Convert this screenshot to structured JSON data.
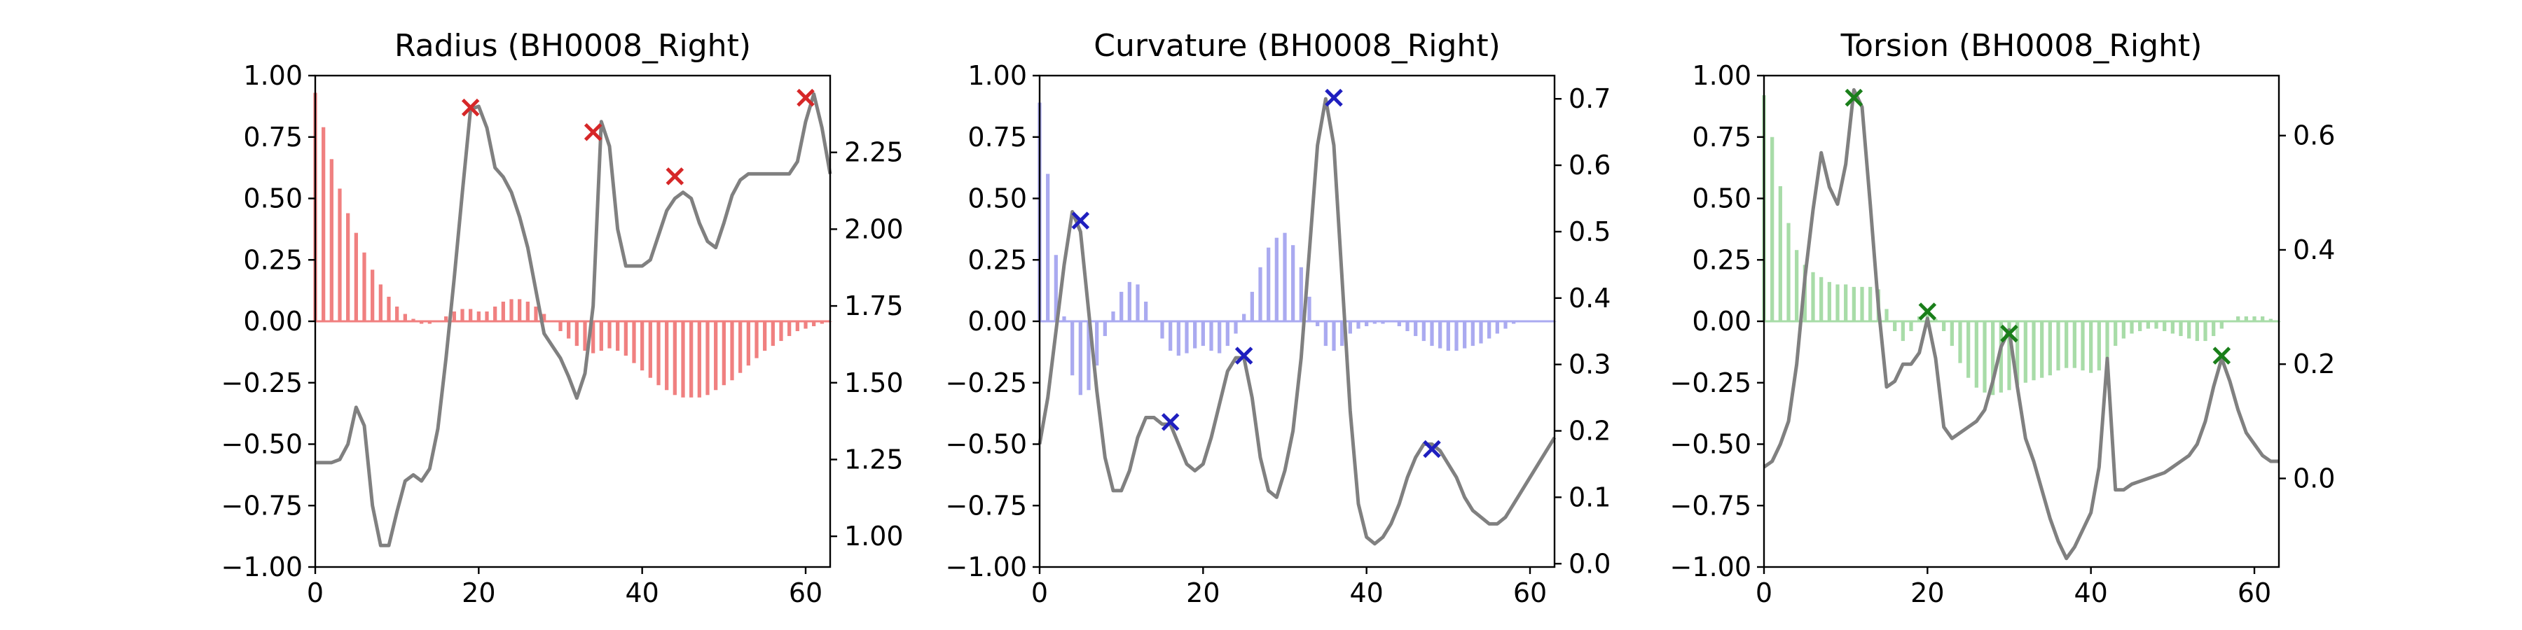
{
  "chart_data": [
    {
      "type": "bar",
      "title": "Radius (BH0008_Right)",
      "bar_color": "#f08080",
      "line_color": "#808080",
      "marker_color": "#d62728",
      "xlim": [
        0,
        63
      ],
      "ylim_left": [
        -1.0,
        1.0
      ],
      "ylim_right": [
        0.9,
        2.5
      ],
      "x_ticks": [
        0,
        20,
        40,
        60
      ],
      "x_tick_labels": [
        "0",
        "20",
        "40",
        "60"
      ],
      "left_ticks": [
        -1.0,
        -0.75,
        -0.5,
        -0.25,
        0.0,
        0.25,
        0.5,
        0.75,
        1.0
      ],
      "left_tick_labels": [
        "−1.00",
        "−0.75",
        "−0.50",
        "−0.25",
        "0.00",
        "0.25",
        "0.50",
        "0.75",
        "1.00"
      ],
      "right_ticks": [
        1.0,
        1.25,
        1.5,
        1.75,
        2.0,
        2.25
      ],
      "right_tick_labels": [
        "1.00",
        "1.25",
        "1.50",
        "1.75",
        "2.00",
        "2.25"
      ],
      "bars": [
        0.93,
        0.79,
        0.66,
        0.54,
        0.44,
        0.36,
        0.28,
        0.21,
        0.15,
        0.1,
        0.06,
        0.03,
        0.01,
        -0.01,
        -0.01,
        0.0,
        0.02,
        0.04,
        0.05,
        0.05,
        0.04,
        0.04,
        0.06,
        0.08,
        0.09,
        0.09,
        0.08,
        0.06,
        0.03,
        0.0,
        -0.04,
        -0.07,
        -0.1,
        -0.12,
        -0.13,
        -0.12,
        -0.11,
        -0.12,
        -0.14,
        -0.17,
        -0.2,
        -0.23,
        -0.26,
        -0.28,
        -0.3,
        -0.31,
        -0.31,
        -0.31,
        -0.3,
        -0.28,
        -0.26,
        -0.24,
        -0.21,
        -0.18,
        -0.15,
        -0.12,
        -0.1,
        -0.08,
        -0.06,
        -0.04,
        -0.03,
        -0.02,
        -0.01,
        0.0
      ],
      "line": [
        1.24,
        1.24,
        1.24,
        1.25,
        1.3,
        1.42,
        1.36,
        1.1,
        0.97,
        0.97,
        1.08,
        1.18,
        1.2,
        1.18,
        1.22,
        1.35,
        1.58,
        1.84,
        2.12,
        2.39,
        2.4,
        2.33,
        2.2,
        2.17,
        2.12,
        2.04,
        1.94,
        1.8,
        1.66,
        1.62,
        1.58,
        1.52,
        1.45,
        1.53,
        1.75,
        2.35,
        2.27,
        2.0,
        1.88,
        1.88,
        1.88,
        1.9,
        1.98,
        2.06,
        2.1,
        2.12,
        2.1,
        2.02,
        1.96,
        1.94,
        2.02,
        2.11,
        2.16,
        2.18,
        2.18,
        2.18,
        2.18,
        2.18,
        2.18,
        2.22,
        2.35,
        2.44,
        2.33,
        2.18
      ],
      "markers": [
        {
          "x": 19,
          "y": 0.87
        },
        {
          "x": 34,
          "y": 0.77
        },
        {
          "x": 44,
          "y": 0.59
        },
        {
          "x": 60,
          "y": 0.91
        }
      ]
    },
    {
      "type": "bar",
      "title": "Curvature (BH0008_Right)",
      "bar_color": "#aaaaf0",
      "line_color": "#808080",
      "marker_color": "#1f1fbf",
      "xlim": [
        0,
        63
      ],
      "ylim_left": [
        -1.0,
        1.0
      ],
      "ylim_right": [
        -0.005,
        0.735
      ],
      "x_ticks": [
        0,
        20,
        40,
        60
      ],
      "x_tick_labels": [
        "0",
        "20",
        "40",
        "60"
      ],
      "left_ticks": [
        -1.0,
        -0.75,
        -0.5,
        -0.25,
        0.0,
        0.25,
        0.5,
        0.75,
        1.0
      ],
      "left_tick_labels": [
        "−1.00",
        "−0.75",
        "−0.50",
        "−0.25",
        "0.00",
        "0.25",
        "0.50",
        "0.75",
        "1.00"
      ],
      "right_ticks": [
        0.0,
        0.1,
        0.2,
        0.3,
        0.4,
        0.5,
        0.6,
        0.7
      ],
      "right_tick_labels": [
        "0.0",
        "0.1",
        "0.2",
        "0.3",
        "0.4",
        "0.5",
        "0.6",
        "0.7"
      ],
      "bars": [
        0.89,
        0.6,
        0.27,
        0.02,
        -0.22,
        -0.3,
        -0.28,
        -0.18,
        -0.06,
        0.04,
        0.12,
        0.16,
        0.15,
        0.08,
        0.0,
        -0.07,
        -0.12,
        -0.14,
        -0.13,
        -0.11,
        -0.1,
        -0.12,
        -0.13,
        -0.1,
        -0.05,
        0.03,
        0.12,
        0.22,
        0.3,
        0.34,
        0.36,
        0.31,
        0.22,
        0.1,
        -0.02,
        -0.1,
        -0.12,
        -0.1,
        -0.05,
        -0.03,
        -0.02,
        -0.01,
        -0.01,
        0.0,
        -0.02,
        -0.04,
        -0.06,
        -0.08,
        -0.1,
        -0.11,
        -0.12,
        -0.12,
        -0.11,
        -0.1,
        -0.09,
        -0.07,
        -0.05,
        -0.03,
        -0.01,
        0.0,
        0.0,
        0.0,
        0.0,
        0.0
      ],
      "line": [
        0.18,
        0.25,
        0.35,
        0.45,
        0.53,
        0.5,
        0.38,
        0.26,
        0.16,
        0.11,
        0.11,
        0.14,
        0.19,
        0.22,
        0.22,
        0.21,
        0.21,
        0.18,
        0.15,
        0.14,
        0.15,
        0.19,
        0.24,
        0.29,
        0.31,
        0.31,
        0.25,
        0.16,
        0.11,
        0.1,
        0.14,
        0.2,
        0.31,
        0.47,
        0.63,
        0.7,
        0.63,
        0.43,
        0.23,
        0.09,
        0.04,
        0.03,
        0.04,
        0.06,
        0.09,
        0.13,
        0.16,
        0.18,
        0.18,
        0.17,
        0.15,
        0.13,
        0.1,
        0.08,
        0.07,
        0.06,
        0.06,
        0.07,
        0.09,
        0.11,
        0.13,
        0.15,
        0.17,
        0.19
      ],
      "markers": [
        {
          "x": 5,
          "y": 0.41
        },
        {
          "x": 16,
          "y": -0.41
        },
        {
          "x": 25,
          "y": -0.14
        },
        {
          "x": 36,
          "y": 0.91
        },
        {
          "x": 48,
          "y": -0.52
        }
      ]
    },
    {
      "type": "bar",
      "title": "Torsion (BH0008_Right)",
      "bar_color": "#a8dca8",
      "line_color": "#808080",
      "marker_color": "#1a7f1a",
      "xlim": [
        0,
        63
      ],
      "ylim_left": [
        -1.0,
        1.0
      ],
      "ylim_right": [
        -0.155,
        0.705
      ],
      "x_ticks": [
        0,
        20,
        40,
        60
      ],
      "x_tick_labels": [
        "0",
        "20",
        "40",
        "60"
      ],
      "left_ticks": [
        -1.0,
        -0.75,
        -0.5,
        -0.25,
        0.0,
        0.25,
        0.5,
        0.75,
        1.0
      ],
      "left_tick_labels": [
        "−1.00",
        "−0.75",
        "−0.50",
        "−0.25",
        "0.00",
        "0.25",
        "0.50",
        "0.75",
        "1.00"
      ],
      "right_ticks": [
        0.0,
        0.2,
        0.4,
        0.6
      ],
      "right_tick_labels": [
        "0.0",
        "0.2",
        "0.4",
        "0.6"
      ],
      "bars": [
        0.92,
        0.75,
        0.55,
        0.4,
        0.29,
        0.23,
        0.2,
        0.18,
        0.16,
        0.15,
        0.15,
        0.14,
        0.14,
        0.14,
        0.13,
        0.05,
        -0.04,
        -0.08,
        -0.04,
        0.02,
        0.04,
        0.01,
        -0.04,
        -0.1,
        -0.17,
        -0.23,
        -0.27,
        -0.29,
        -0.3,
        -0.29,
        -0.28,
        -0.26,
        -0.25,
        -0.24,
        -0.23,
        -0.22,
        -0.2,
        -0.19,
        -0.19,
        -0.2,
        -0.21,
        -0.2,
        -0.15,
        -0.1,
        -0.07,
        -0.05,
        -0.04,
        -0.03,
        -0.03,
        -0.04,
        -0.05,
        -0.06,
        -0.07,
        -0.08,
        -0.08,
        -0.06,
        -0.03,
        0.0,
        0.02,
        0.02,
        0.02,
        0.02,
        0.01,
        0.0
      ],
      "line": [
        0.02,
        0.03,
        0.06,
        0.1,
        0.2,
        0.35,
        0.47,
        0.57,
        0.51,
        0.48,
        0.55,
        0.68,
        0.65,
        0.48,
        0.3,
        0.16,
        0.17,
        0.2,
        0.2,
        0.22,
        0.28,
        0.21,
        0.09,
        0.07,
        0.08,
        0.09,
        0.1,
        0.12,
        0.17,
        0.23,
        0.26,
        0.16,
        0.07,
        0.03,
        -0.02,
        -0.07,
        -0.11,
        -0.14,
        -0.12,
        -0.09,
        -0.06,
        0.02,
        0.21,
        -0.02,
        -0.02,
        -0.01,
        -0.005,
        0.0,
        0.005,
        0.01,
        0.02,
        0.03,
        0.04,
        0.06,
        0.1,
        0.16,
        0.21,
        0.17,
        0.12,
        0.08,
        0.06,
        0.04,
        0.03,
        0.03
      ],
      "markers": [
        {
          "x": 11,
          "y": 0.91
        },
        {
          "x": 20,
          "y": 0.04
        },
        {
          "x": 30,
          "y": -0.05
        },
        {
          "x": 56,
          "y": -0.14
        }
      ]
    }
  ]
}
